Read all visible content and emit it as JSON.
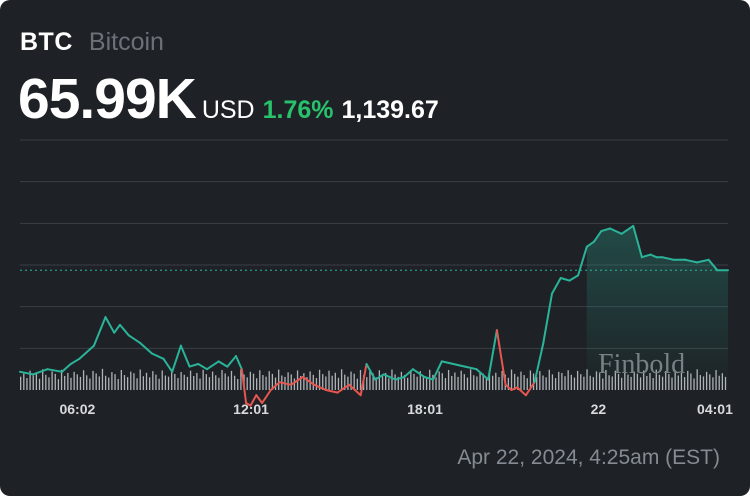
{
  "header": {
    "ticker": "BTC",
    "name": "Bitcoin",
    "price": "65.99K",
    "currency": "USD",
    "change_pct": "1.76%",
    "change_abs": "1,139.67"
  },
  "footer": {
    "timestamp": "Apr 22, 2024, 4:25am (EST)"
  },
  "watermark": "Finbold",
  "colors": {
    "background": "#1e2226",
    "up": "#2bb39a",
    "down": "#e8564f",
    "positive_change": "#27c26b",
    "volume": "#c9ccd0",
    "reference_line": "#2bb39a"
  },
  "chart_data": {
    "type": "line",
    "title": "",
    "xlabel": "",
    "ylabel": "",
    "x_tick_labels": [
      "06:02",
      "12:01",
      "18:01",
      "22",
      "04:01"
    ],
    "x_tick_hours": [
      6.03,
      12.02,
      18.02,
      24.0,
      28.02
    ],
    "x_range_hours": [
      4.05,
      28.47
    ],
    "y_range_relative": [
      -2.3,
      2.5
    ],
    "reference_value": 0,
    "gridlines": true,
    "series": [
      {
        "t": [
          4.05,
          4.5,
          5.0,
          5.5,
          5.8,
          6.1,
          6.6,
          7.0,
          7.3,
          7.5,
          7.8,
          8.2,
          8.6,
          9.0,
          9.3,
          9.6,
          9.9,
          10.2,
          10.5,
          10.9,
          11.2,
          11.5,
          11.7,
          11.85,
          12.0,
          12.2,
          12.4,
          12.7,
          13.0,
          13.4,
          13.8,
          14.2,
          14.6,
          15.0,
          15.4,
          15.8,
          16.0,
          16.3,
          16.6,
          17.0,
          17.3,
          17.6,
          18.0,
          18.3,
          18.6,
          19.0,
          19.4,
          19.8,
          20.2,
          20.5,
          20.8,
          21.0,
          21.2,
          21.5,
          21.8,
          22.1,
          22.4,
          22.7,
          23.0,
          23.3,
          23.6,
          23.85,
          24.1,
          24.4,
          24.8,
          25.2,
          25.5,
          25.8,
          26.0,
          26.2,
          26.6,
          27.0,
          27.4,
          27.8,
          28.1,
          28.47
        ],
        "values": [
          -1.95,
          -2.0,
          -1.9,
          -1.95,
          -1.8,
          -1.7,
          -1.45,
          -0.9,
          -1.2,
          -1.05,
          -1.25,
          -1.4,
          -1.6,
          -1.7,
          -1.95,
          -1.45,
          -1.85,
          -1.8,
          -1.9,
          -1.75,
          -1.85,
          -1.65,
          -1.9,
          -2.55,
          -2.6,
          -2.4,
          -2.55,
          -2.3,
          -2.15,
          -2.2,
          -2.05,
          -2.2,
          -2.3,
          -2.35,
          -2.2,
          -2.4,
          -1.8,
          -2.1,
          -2.0,
          -2.1,
          -2.05,
          -1.9,
          -2.05,
          -2.1,
          -1.75,
          -1.8,
          -1.85,
          -1.9,
          -2.1,
          -1.15,
          -2.2,
          -2.3,
          -2.25,
          -2.4,
          -2.15,
          -1.4,
          -0.45,
          -0.15,
          -0.2,
          -0.1,
          0.45,
          0.55,
          0.75,
          0.8,
          0.7,
          0.85,
          0.25,
          0.3,
          0.25,
          0.25,
          0.2,
          0.2,
          0.15,
          0.2,
          0.0,
          0.0
        ]
      }
    ],
    "volume": [
      0.58,
      0.71,
      0.52,
      0.84,
      0.63,
      0.77,
      0.49,
      0.9,
      0.66,
      0.55,
      0.81,
      0.7,
      0.47,
      0.88,
      0.61,
      0.74,
      0.53,
      0.79,
      0.68,
      0.57,
      0.86,
      0.64,
      0.5,
      0.83,
      0.72,
      0.59,
      0.92,
      0.62,
      0.54,
      0.78,
      0.69,
      0.48,
      0.87,
      0.65,
      0.56,
      0.8,
      0.73,
      0.51,
      0.89,
      0.6,
      0.75,
      0.55,
      0.82,
      0.67,
      0.49,
      0.85,
      0.63,
      0.58,
      0.91,
      0.7,
      0.52,
      0.78,
      0.66,
      0.57,
      0.84,
      0.61,
      0.74,
      0.5,
      0.88,
      0.69,
      0.56,
      0.8,
      0.64,
      0.53,
      0.87,
      0.72,
      0.59,
      0.83,
      0.62,
      0.48,
      0.9,
      0.67,
      0.55,
      0.79,
      0.71,
      0.51,
      0.86,
      0.65,
      0.58,
      0.82,
      0.7,
      0.54,
      0.89,
      0.63,
      0.57,
      0.77,
      0.68,
      0.5,
      0.85,
      0.61,
      0.73,
      0.56,
      0.81,
      0.66,
      0.52,
      0.88,
      0.69,
      0.59,
      0.84,
      0.62,
      0.75,
      0.53,
      0.9,
      0.67,
      0.58,
      0.8,
      0.71,
      0.49,
      0.87,
      0.64,
      0.56,
      0.83,
      0.72,
      0.55,
      0.86,
      0.6,
      0.74,
      0.51,
      0.89,
      0.68,
      0.57,
      0.79,
      0.65,
      0.53,
      0.85,
      0.7,
      0.58,
      0.82,
      0.63,
      0.5,
      0.88,
      0.66,
      0.55,
      0.81,
      0.73,
      0.52,
      0.87,
      0.61,
      0.76,
      0.57,
      0.84,
      0.69,
      0.54,
      0.9,
      0.64,
      0.59,
      0.78,
      0.71,
      0.5,
      0.86,
      0.62,
      0.75,
      0.56,
      0.83,
      0.67,
      0.53,
      0.89,
      0.7,
      0.58,
      0.8,
      0.65,
      0.51,
      0.85,
      0.72,
      0.57,
      0.82,
      0.63,
      0.55,
      0.88,
      0.68,
      0.52,
      0.79,
      0.74,
      0.6,
      0.86,
      0.66,
      0.54,
      0.83,
      0.69,
      0.58,
      0.9,
      0.62,
      0.56,
      0.81,
      0.73,
      0.5,
      0.87,
      0.64,
      0.59,
      0.84,
      0.7,
      0.53,
      0.88,
      0.67,
      0.57,
      0.8,
      0.71,
      0.55,
      0.85,
      0.61,
      0.74,
      0.52,
      0.89,
      0.66,
      0.58,
      0.82,
      0.69,
      0.54,
      0.86,
      0.63,
      0.76,
      0.56,
      0.83,
      0.72,
      0.5,
      0.9,
      0.65,
      0.59,
      0.79,
      0.68,
      0.55,
      0.87,
      0.62,
      0.73,
      0.57
    ]
  }
}
